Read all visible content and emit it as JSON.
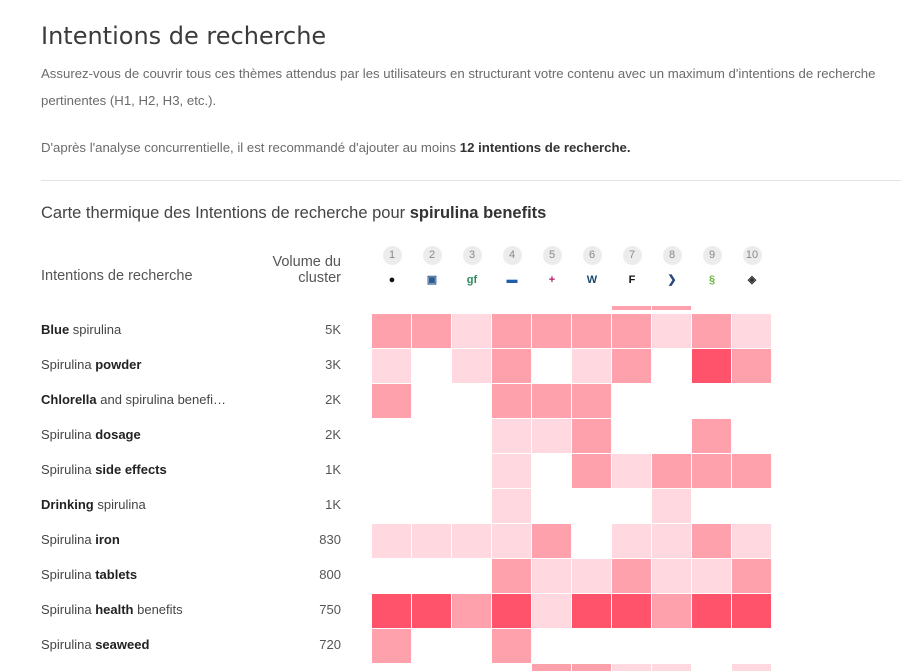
{
  "page": {
    "title": "Intentions de recherche",
    "description": "Assurez-vous de couvrir tous ces thèmes attendus par les utilisateurs en structurant votre contenu avec un maximum d'intentions de recherche pertinentes (H1, H2, H3, etc.).",
    "recommendation_prefix": "D'après l'analyse concurrentielle, il est recommandé d'ajouter au moins ",
    "recommendation_strong": "12 intentions de recherche."
  },
  "heatmap": {
    "title_prefix": "Carte thermique des Intentions de recherche pour ",
    "keyword": "spirulina benefits",
    "intent_header": "Intentions de recherche",
    "volume_header_line1": "Volume du",
    "volume_header_line2": "cluster",
    "colors": {
      "level0": "#ffffff",
      "level1": "#ffd9df",
      "level2": "#ffa1ad",
      "level3": "#ff526b"
    },
    "competitors": [
      {
        "rank": "1",
        "icon": "circle-logo-icon",
        "glyph": "●"
      },
      {
        "rank": "2",
        "icon": "blue-tag-logo-icon",
        "glyph": "▣"
      },
      {
        "rank": "3",
        "icon": "gf-logo-icon",
        "glyph": "gf"
      },
      {
        "rank": "4",
        "icon": "blue-box-logo-icon",
        "glyph": "▬"
      },
      {
        "rank": "5",
        "icon": "plus-logo-icon",
        "glyph": "+"
      },
      {
        "rank": "6",
        "icon": "w-logo-icon",
        "glyph": "W"
      },
      {
        "rank": "7",
        "icon": "f-logo-icon",
        "glyph": "F"
      },
      {
        "rank": "8",
        "icon": "arrow-logo-icon",
        "glyph": "❯"
      },
      {
        "rank": "9",
        "icon": "green-leaf-logo-icon",
        "glyph": "§"
      },
      {
        "rank": "10",
        "icon": "diamond-logo-icon",
        "glyph": "◈"
      }
    ],
    "rows": [
      {
        "parts": [
          {
            "t": "Blue",
            "b": true
          },
          {
            "t": " spirulina",
            "b": false
          }
        ],
        "volume": "5K",
        "levels": [
          2,
          2,
          1,
          2,
          2,
          2,
          2,
          1,
          2,
          1
        ]
      },
      {
        "parts": [
          {
            "t": "Spirulina ",
            "b": false
          },
          {
            "t": "powder",
            "b": true
          }
        ],
        "volume": "3K",
        "levels": [
          1,
          0,
          1,
          2,
          0,
          1,
          2,
          0,
          3,
          2
        ]
      },
      {
        "parts": [
          {
            "t": "Chlorella",
            "b": true
          },
          {
            "t": " and spirulina benefi…",
            "b": false
          }
        ],
        "volume": "2K",
        "levels": [
          2,
          0,
          0,
          2,
          2,
          2,
          0,
          0,
          0,
          0
        ]
      },
      {
        "parts": [
          {
            "t": "Spirulina ",
            "b": false
          },
          {
            "t": "dosage",
            "b": true
          }
        ],
        "volume": "2K",
        "levels": [
          0,
          0,
          0,
          1,
          1,
          2,
          0,
          0,
          2,
          0
        ]
      },
      {
        "parts": [
          {
            "t": "Spirulina ",
            "b": false
          },
          {
            "t": "side effects",
            "b": true
          }
        ],
        "volume": "1K",
        "levels": [
          0,
          0,
          0,
          1,
          0,
          2,
          1,
          2,
          2,
          2
        ]
      },
      {
        "parts": [
          {
            "t": "Drinking",
            "b": true
          },
          {
            "t": " spirulina",
            "b": false
          }
        ],
        "volume": "1K",
        "levels": [
          0,
          0,
          0,
          1,
          0,
          0,
          0,
          1,
          0,
          0
        ]
      },
      {
        "parts": [
          {
            "t": "Spirulina ",
            "b": false
          },
          {
            "t": "iron",
            "b": true
          }
        ],
        "volume": "830",
        "levels": [
          1,
          1,
          1,
          1,
          2,
          0,
          1,
          1,
          2,
          1
        ]
      },
      {
        "parts": [
          {
            "t": "Spirulina ",
            "b": false
          },
          {
            "t": "tablets",
            "b": true
          }
        ],
        "volume": "800",
        "levels": [
          0,
          0,
          0,
          2,
          1,
          1,
          2,
          1,
          1,
          2
        ]
      },
      {
        "parts": [
          {
            "t": "Spirulina ",
            "b": false
          },
          {
            "t": "health",
            "b": true
          },
          {
            "t": " benefits",
            "b": false
          }
        ],
        "volume": "750",
        "levels": [
          3,
          3,
          2,
          3,
          1,
          3,
          3,
          2,
          3,
          3
        ]
      },
      {
        "parts": [
          {
            "t": "Spirulina ",
            "b": false
          },
          {
            "t": "seaweed",
            "b": true
          }
        ],
        "volume": "720",
        "levels": [
          2,
          0,
          0,
          2,
          0,
          0,
          0,
          0,
          0,
          0
        ]
      }
    ],
    "top_partial_levels": [
      0,
      0,
      0,
      0,
      0,
      0,
      2,
      2,
      0,
      0
    ],
    "bottom_partial_levels": [
      0,
      0,
      0,
      0,
      2,
      2,
      1,
      1,
      0,
      1
    ]
  }
}
